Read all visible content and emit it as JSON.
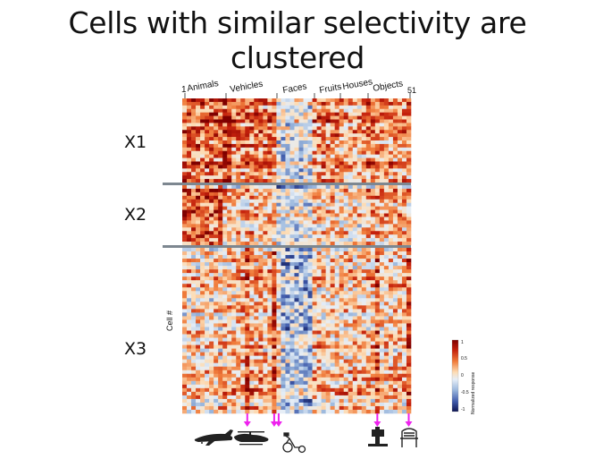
{
  "slide": {
    "title": "Cells with similar selectivity are clustered"
  },
  "clusters": [
    {
      "label": "X1"
    },
    {
      "label": "X2"
    },
    {
      "label": "X3"
    }
  ],
  "heatmap": {
    "categories": [
      "Animals",
      "Vehicles",
      "Faces",
      "Fruits",
      "Houses",
      "Objects"
    ],
    "start_tick": "1",
    "end_tick": "51",
    "ylabel": "Cell #"
  },
  "colorbar": {
    "ticks": [
      "1",
      "0.5",
      "0",
      "-0.5",
      "-1"
    ],
    "label": "Normalized response",
    "colors": [
      "#7f0000",
      "#c4200c",
      "#f07c3b",
      "#fddcb4",
      "#e6eef7",
      "#9ab7dd",
      "#3f5aab",
      "#0d1452"
    ]
  },
  "pictograms": [
    {
      "icon": "airplane-icon"
    },
    {
      "icon": "helicopter-icon"
    },
    {
      "icon": "tricycle-icon"
    },
    {
      "icon": "easel-camera-icon"
    },
    {
      "icon": "chair-icon"
    }
  ],
  "arrow_color": "#ee22ee",
  "chart_data": {
    "type": "heatmap",
    "title": "",
    "xlabel": "",
    "ylabel": "Cell #",
    "x_categories": [
      "Animals",
      "Vehicles",
      "Faces",
      "Fruits",
      "Houses",
      "Objects"
    ],
    "x_range": [
      1,
      51
    ],
    "color_range": [
      -1,
      1
    ],
    "colorbar_label": "Normalized response",
    "row_groups": [
      "X1",
      "X2",
      "X3"
    ],
    "highlighted_columns": [
      15,
      21,
      22,
      44,
      51
    ]
  }
}
